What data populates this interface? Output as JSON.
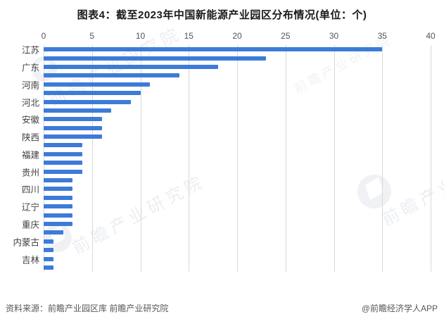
{
  "title": "图表4：截至2023年中国新能源产业园区分布情况(单位：个)",
  "footer": {
    "source": "资料来源：前瞻产业园区库 前瞻产业研究院",
    "credit": "@前瞻经济学人APP"
  },
  "watermark": {
    "text": "前瞻产业研究院"
  },
  "colors": {
    "bar": "#3d7bd8",
    "grid": "#d8d8d8",
    "tick_text": "#555555",
    "label_text": "#3f3f3f",
    "title_text": "#1a1a1a",
    "footer_text": "#595757"
  },
  "chart_data": {
    "type": "bar",
    "orientation": "horizontal",
    "title": "图表4：截至2023年中国新能源产业园区分布情况(单位：个)",
    "xlabel": "",
    "ylabel": "",
    "x_axis": {
      "position": "top",
      "min": 0,
      "max": 40,
      "ticks": [
        0,
        5,
        10,
        15,
        20,
        25,
        30,
        35,
        40
      ]
    },
    "grid": true,
    "legend": "none",
    "rows": [
      {
        "label": "江苏",
        "value": 35
      },
      {
        "label": "",
        "value": 23
      },
      {
        "label": "广东",
        "value": 18
      },
      {
        "label": "",
        "value": 14
      },
      {
        "label": "河南",
        "value": 11
      },
      {
        "label": "",
        "value": 10
      },
      {
        "label": "河北",
        "value": 9
      },
      {
        "label": "",
        "value": 7
      },
      {
        "label": "安徽",
        "value": 6
      },
      {
        "label": "",
        "value": 6
      },
      {
        "label": "陕西",
        "value": 6
      },
      {
        "label": "",
        "value": 4
      },
      {
        "label": "福建",
        "value": 4
      },
      {
        "label": "",
        "value": 4
      },
      {
        "label": "贵州",
        "value": 4
      },
      {
        "label": "",
        "value": 3
      },
      {
        "label": "四川",
        "value": 3
      },
      {
        "label": "",
        "value": 3
      },
      {
        "label": "辽宁",
        "value": 3
      },
      {
        "label": "",
        "value": 3
      },
      {
        "label": "重庆",
        "value": 3
      },
      {
        "label": "",
        "value": 2
      },
      {
        "label": "内蒙古",
        "value": 1
      },
      {
        "label": "",
        "value": 1
      },
      {
        "label": "吉林",
        "value": 1
      },
      {
        "label": "",
        "value": 1
      }
    ]
  }
}
